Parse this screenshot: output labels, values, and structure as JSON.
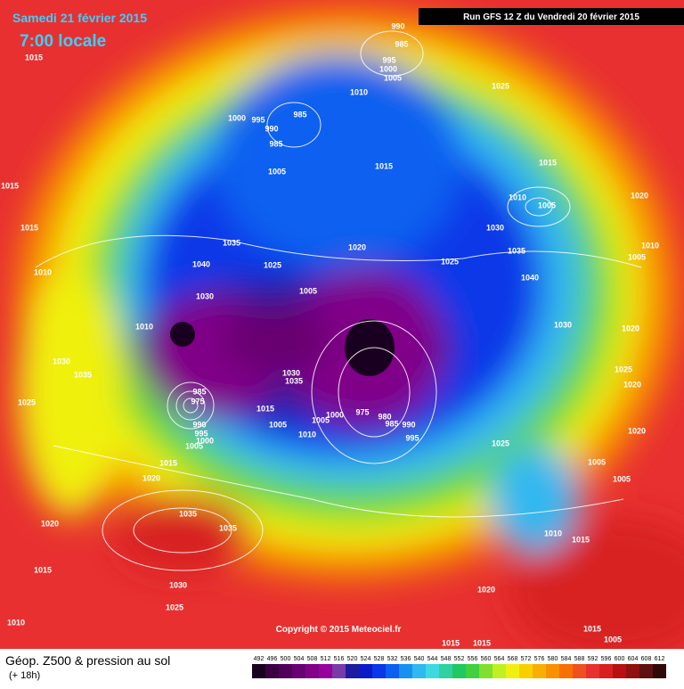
{
  "header": {
    "date": "Samedi 21 février 2015",
    "time": "7:00 locale",
    "run": "Run GFS 12 Z du Vendredi 20 février 2015"
  },
  "copyright": "Copyright © 2015 Meteociel.fr",
  "legend": {
    "title": "Géop. Z500 & pression au sol",
    "subtitle": "(+ 18h)",
    "values": [
      492,
      496,
      500,
      504,
      508,
      512,
      516,
      520,
      524,
      528,
      532,
      536,
      540,
      544,
      548,
      552,
      556,
      560,
      564,
      568,
      572,
      576,
      580,
      584,
      588,
      592,
      596,
      600,
      604,
      608,
      612
    ],
    "colors": [
      "#1a0020",
      "#3a0040",
      "#500058",
      "#680070",
      "#800088",
      "#98009c",
      "#7a3aa8",
      "#1c1ca0",
      "#0a1cc8",
      "#0838e8",
      "#0a60f0",
      "#1890f0",
      "#30b8f0",
      "#40d8e0",
      "#30d0a0",
      "#20c860",
      "#40d040",
      "#80e030",
      "#c0f020",
      "#f0f010",
      "#f8d000",
      "#f8b000",
      "#f89000",
      "#f87000",
      "#f05020",
      "#e83030",
      "#d82020",
      "#b81010",
      "#901010",
      "#601010",
      "#300808"
    ]
  },
  "pressure_labels": [
    990,
    985,
    995,
    1000,
    1005,
    1025,
    1010,
    1015,
    985,
    1000,
    995,
    990,
    985,
    1005,
    1015,
    1015,
    1015,
    1010,
    1005,
    1020,
    1015,
    1030,
    1035,
    1020,
    1025,
    1035,
    1010,
    1005,
    1040,
    1025,
    1040,
    1010,
    1005,
    1030,
    1030,
    1020,
    1010,
    1030,
    1035,
    1030,
    1035,
    1025,
    1020,
    985,
    975,
    1025,
    1015,
    1000,
    975,
    980,
    985,
    990,
    1005,
    1005,
    1010,
    990,
    995,
    1000,
    1005,
    995,
    1025,
    1020,
    1015,
    1005,
    1020,
    1005,
    1035,
    1035,
    1020,
    1010,
    1015,
    1015,
    1030,
    1020,
    1025,
    1010,
    1015,
    1005,
    1015,
    1015
  ]
}
